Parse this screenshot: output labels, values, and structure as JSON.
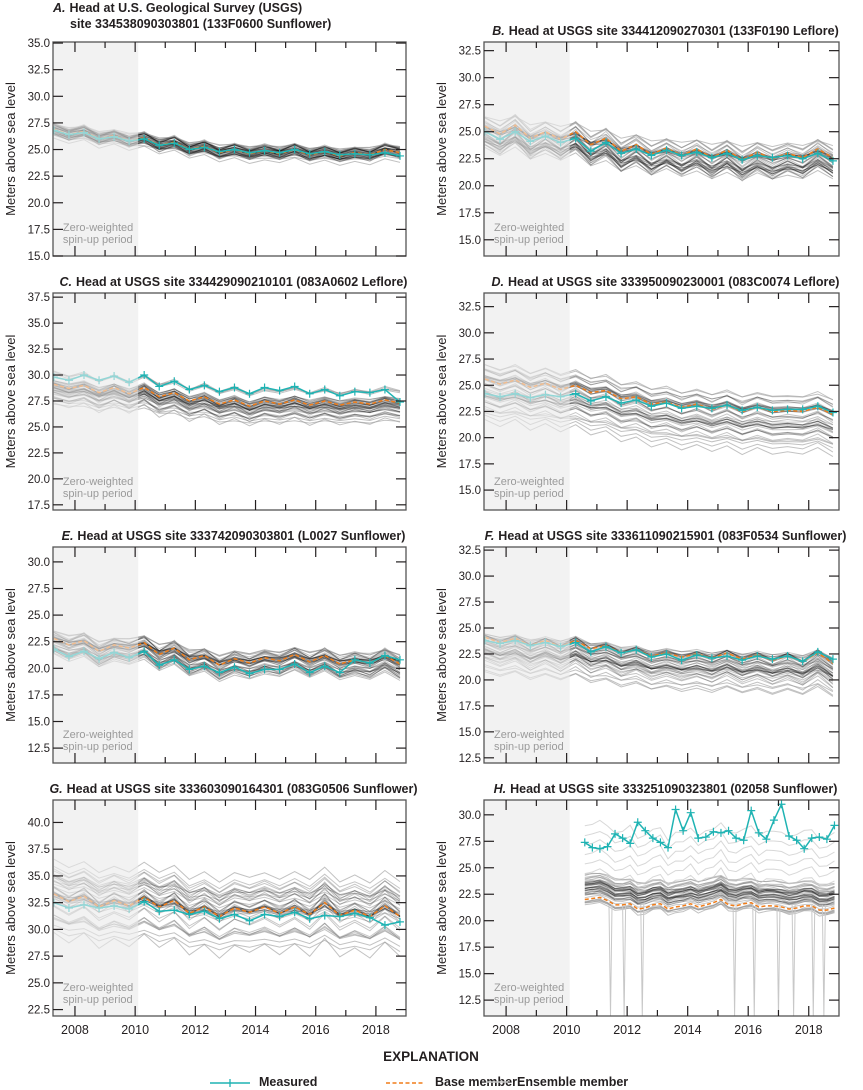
{
  "y_axis_label": "Meters above sea level",
  "spinup_label": [
    "Zero-weighted",
    "spin-up period"
  ],
  "spinup_end_year": 2010.1,
  "x_ticks": [
    "2008",
    "2010",
    "2012",
    "2014",
    "2016",
    "2018"
  ],
  "xlim": [
    2007.27,
    2019.0
  ],
  "colors": {
    "measured": "#1fb3b3",
    "base": "#f07d1a",
    "ensemble": "#000000",
    "ensemble_light": "#c8c8c8",
    "spinup_shade": "#f2f2f2",
    "frame": "#555555"
  },
  "legend": {
    "heading": "EXPLANATION",
    "items": [
      {
        "label": "Measured",
        "style": "teal line with plus markers"
      },
      {
        "label": "Base member",
        "style": "orange dashed line"
      },
      {
        "label": "Ensemble member",
        "style": "light gray line"
      }
    ]
  },
  "chart_data": [
    {
      "type": "line",
      "panel": "A.",
      "title": [
        "Head at U.S. Geological Survey (USGS)",
        "site 334538090303801 (133F0600 Sunflower)"
      ],
      "ylim": [
        15.0,
        35.1
      ],
      "ylabel": "Meters above sea level",
      "x": [
        2007.3,
        2007.8,
        2008.3,
        2008.8,
        2009.3,
        2009.8,
        2010.3,
        2010.8,
        2011.3,
        2011.8,
        2012.3,
        2012.8,
        2013.3,
        2013.8,
        2014.3,
        2014.8,
        2015.3,
        2015.8,
        2016.3,
        2016.8,
        2017.3,
        2017.8,
        2018.3,
        2018.8
      ],
      "base": [
        26.9,
        26.4,
        26.7,
        26.0,
        26.3,
        25.8,
        26.1,
        25.4,
        25.7,
        25.0,
        25.3,
        24.7,
        25.0,
        24.6,
        24.9,
        24.6,
        25.0,
        24.5,
        24.8,
        24.4,
        24.7,
        24.5,
        25.0,
        24.7
      ],
      "measured": [
        26.8,
        26.4,
        26.6,
        26.0,
        26.2,
        25.8,
        26.0,
        25.4,
        25.6,
        25.0,
        25.2,
        24.8,
        25.0,
        24.7,
        24.9,
        24.7,
        25.0,
        24.6,
        24.8,
        24.5,
        24.6,
        24.5,
        24.7,
        24.4
      ],
      "ensemble_spread": [
        -0.6,
        0.6
      ]
    },
    {
      "type": "line",
      "panel": "B.",
      "title": [
        "Head at USGS site 334412090270301 (133F0190 Leflore)"
      ],
      "ylim": [
        13.5,
        33.3
      ],
      "ylabel": "Meters above sea level",
      "x": [
        2007.3,
        2007.8,
        2008.3,
        2008.8,
        2009.3,
        2009.8,
        2010.3,
        2010.8,
        2011.3,
        2011.8,
        2012.3,
        2012.8,
        2013.3,
        2013.8,
        2014.3,
        2014.8,
        2015.3,
        2015.8,
        2016.3,
        2016.8,
        2017.3,
        2017.8,
        2018.3,
        2018.8
      ],
      "base": [
        25.5,
        24.8,
        25.6,
        24.4,
        25.0,
        24.3,
        25.0,
        23.8,
        24.4,
        23.2,
        23.8,
        22.9,
        23.5,
        22.8,
        23.4,
        22.6,
        23.3,
        22.4,
        23.1,
        22.5,
        23.0,
        22.6,
        23.4,
        22.6
      ],
      "measured": [
        25.0,
        24.3,
        25.0,
        24.1,
        24.6,
        24.0,
        24.4,
        23.2,
        24.0,
        23.0,
        23.4,
        22.8,
        23.3,
        22.8,
        23.1,
        22.6,
        23.0,
        22.4,
        22.8,
        22.6,
        22.8,
        22.5,
        23.0,
        22.3
      ],
      "ensemble_spread": [
        -2.0,
        1.0
      ]
    },
    {
      "type": "line",
      "panel": "C.",
      "title": [
        "Head at USGS site 334429090210101 (083A0602 Leflore)"
      ],
      "ylim": [
        17.0,
        37.9
      ],
      "ylabel": "Meters above sea level",
      "x": [
        2007.3,
        2007.8,
        2008.3,
        2008.8,
        2009.3,
        2009.8,
        2010.3,
        2010.8,
        2011.3,
        2011.8,
        2012.3,
        2012.8,
        2013.3,
        2013.8,
        2014.3,
        2014.8,
        2015.3,
        2015.8,
        2016.3,
        2016.8,
        2017.3,
        2017.8,
        2018.3,
        2018.8
      ],
      "base": [
        29.1,
        28.7,
        29.0,
        28.3,
        28.8,
        28.2,
        28.8,
        27.9,
        28.3,
        27.5,
        27.9,
        27.2,
        27.6,
        27.0,
        27.5,
        27.2,
        27.6,
        27.1,
        27.5,
        27.1,
        27.4,
        27.2,
        27.6,
        27.3
      ],
      "measured": [
        29.8,
        29.5,
        30.0,
        29.5,
        29.9,
        29.3,
        30.0,
        28.9,
        29.4,
        28.6,
        29.0,
        28.4,
        28.8,
        28.2,
        28.8,
        28.5,
        28.9,
        28.2,
        28.6,
        28.0,
        28.4,
        28.3,
        28.6,
        27.4
      ],
      "ensemble_spread": [
        -1.8,
        1.0
      ]
    },
    {
      "type": "line",
      "panel": "D.",
      "title": [
        "Head at USGS site 333950090230001 (083C0074 Leflore)"
      ],
      "ylim": [
        13.1,
        33.8
      ],
      "ylabel": "Meters above sea level",
      "x": [
        2007.3,
        2007.8,
        2008.3,
        2008.8,
        2009.3,
        2009.8,
        2010.3,
        2010.8,
        2011.3,
        2011.8,
        2012.3,
        2012.8,
        2013.3,
        2013.8,
        2014.3,
        2014.8,
        2015.3,
        2015.8,
        2016.3,
        2016.8,
        2017.3,
        2017.8,
        2018.3,
        2018.8
      ],
      "base": [
        25.6,
        25.1,
        25.5,
        24.8,
        25.2,
        24.6,
        25.0,
        24.3,
        24.5,
        23.7,
        23.9,
        23.2,
        23.4,
        22.9,
        23.2,
        22.7,
        23.1,
        22.5,
        22.9,
        22.5,
        22.6,
        22.5,
        22.9,
        22.2
      ],
      "measured": [
        24.2,
        23.9,
        24.2,
        23.8,
        24.1,
        23.9,
        24.2,
        23.5,
        23.9,
        23.3,
        23.6,
        23.0,
        23.3,
        22.8,
        23.0,
        22.8,
        23.1,
        22.6,
        22.9,
        22.6,
        22.7,
        22.7,
        23.0,
        22.4
      ],
      "ensemble_spread": [
        -3.3,
        1.6
      ]
    },
    {
      "type": "line",
      "panel": "E.",
      "title": [
        "Head at USGS site 333742090303801 (L0027 Sunflower)"
      ],
      "ylim": [
        11.1,
        31.4
      ],
      "ylabel": "Meters above sea level",
      "x": [
        2007.3,
        2007.8,
        2008.3,
        2008.8,
        2009.3,
        2009.8,
        2010.3,
        2010.8,
        2011.3,
        2011.8,
        2012.3,
        2012.8,
        2013.3,
        2013.8,
        2014.3,
        2014.8,
        2015.3,
        2015.8,
        2016.3,
        2016.8,
        2017.3,
        2017.8,
        2018.3,
        2018.8
      ],
      "base": [
        22.8,
        22.2,
        22.6,
        21.6,
        22.2,
        21.9,
        22.4,
        21.3,
        21.9,
        20.8,
        21.2,
        20.3,
        20.9,
        20.5,
        21.0,
        20.7,
        21.3,
        20.6,
        21.2,
        20.4,
        20.8,
        20.5,
        21.2,
        20.4
      ],
      "measured": [
        21.8,
        21.1,
        21.6,
        20.9,
        21.5,
        21.0,
        21.6,
        20.3,
        20.8,
        19.9,
        20.2,
        19.6,
        20.1,
        19.5,
        19.9,
        19.9,
        20.4,
        19.6,
        20.2,
        19.6,
        20.8,
        20.5,
        21.2,
        20.8
      ],
      "ensemble_spread": [
        -1.5,
        0.8
      ]
    },
    {
      "type": "line",
      "panel": "F.",
      "title": [
        "Head at USGS site 333611090215901 (083F0534 Sunflower)"
      ],
      "ylim": [
        12.0,
        32.8
      ],
      "ylabel": "Meters above sea level",
      "x": [
        2007.3,
        2007.8,
        2008.3,
        2008.8,
        2009.3,
        2009.8,
        2010.3,
        2010.8,
        2011.3,
        2011.8,
        2012.3,
        2012.8,
        2013.3,
        2013.8,
        2014.3,
        2014.8,
        2015.3,
        2015.8,
        2016.3,
        2016.8,
        2017.3,
        2017.8,
        2018.3,
        2018.8
      ],
      "base": [
        24.1,
        23.6,
        24.0,
        23.3,
        23.8,
        23.2,
        23.8,
        23.0,
        23.3,
        22.6,
        22.9,
        22.3,
        22.6,
        22.2,
        22.5,
        22.1,
        22.6,
        22.0,
        22.4,
        21.9,
        22.3,
        21.8,
        22.6,
        21.6
      ],
      "measured": [
        23.8,
        23.5,
        23.8,
        23.3,
        23.6,
        23.2,
        23.6,
        22.7,
        23.2,
        22.6,
        22.9,
        22.2,
        22.5,
        21.9,
        22.4,
        22.1,
        22.3,
        21.9,
        22.3,
        22.0,
        22.3,
        21.8,
        22.7,
        22.0
      ],
      "ensemble_spread": [
        -3.0,
        1.3
      ]
    },
    {
      "type": "line",
      "panel": "G.",
      "title": [
        "Head at USGS site 333603090164301 (083G0506 Sunflower)"
      ],
      "ylim": [
        21.9,
        42.1
      ],
      "ylabel": "Meters above sea level",
      "x": [
        2007.3,
        2007.8,
        2008.3,
        2008.8,
        2009.3,
        2009.8,
        2010.3,
        2010.8,
        2011.3,
        2011.8,
        2012.3,
        2012.8,
        2013.3,
        2013.8,
        2014.3,
        2014.8,
        2015.3,
        2015.8,
        2016.3,
        2016.8,
        2017.3,
        2017.8,
        2018.3,
        2018.8
      ],
      "base": [
        33.3,
        32.6,
        33.1,
        32.1,
        32.7,
        32.2,
        33.0,
        32.1,
        32.7,
        31.5,
        32.1,
        31.2,
        32.0,
        31.6,
        32.1,
        31.5,
        32.1,
        31.4,
        32.5,
        31.3,
        31.8,
        31.2,
        32.2,
        31.2
      ],
      "measured": [
        32.5,
        32.0,
        32.3,
        32.0,
        32.2,
        31.9,
        32.6,
        31.7,
        31.8,
        31.4,
        31.7,
        31.0,
        31.4,
        30.8,
        31.4,
        31.2,
        31.6,
        31.0,
        31.3,
        31.2,
        31.5,
        31.1,
        30.4,
        30.7
      ],
      "ensemble_spread": [
        -2.8,
        3.6
      ]
    },
    {
      "type": "line",
      "panel": "H.",
      "title": [
        "Head at USGS site 333251090323801 (02058 Sunflower)"
      ],
      "ylim": [
        11.0,
        31.4
      ],
      "ylabel": "Meters above sea level",
      "x": [
        2010.6,
        2010.85,
        2011.1,
        2011.35,
        2011.6,
        2011.85,
        2012.1,
        2012.35,
        2012.6,
        2012.85,
        2013.1,
        2013.35,
        2013.6,
        2013.85,
        2014.1,
        2014.35,
        2014.6,
        2014.85,
        2015.1,
        2015.35,
        2015.6,
        2015.85,
        2016.1,
        2016.35,
        2016.6,
        2016.85,
        2017.1,
        2017.35,
        2017.6,
        2017.85,
        2018.1,
        2018.35,
        2018.6,
        2018.85
      ],
      "base": [
        22.0,
        22.1,
        22.2,
        21.9,
        21.5,
        21.5,
        21.6,
        21.1,
        21.2,
        21.5,
        21.6,
        21.1,
        21.3,
        21.4,
        21.6,
        21.3,
        21.5,
        21.7,
        22.0,
        21.5,
        21.4,
        21.6,
        21.7,
        21.3,
        21.4,
        21.4,
        21.3,
        21.1,
        21.2,
        21.4,
        21.4,
        21.0,
        21.0,
        21.2
      ],
      "measured": [
        27.4,
        26.9,
        26.8,
        27.0,
        28.2,
        27.8,
        27.3,
        29.3,
        28.5,
        27.8,
        27.4,
        26.9,
        30.5,
        28.5,
        30.2,
        27.8,
        27.9,
        28.4,
        28.3,
        28.5,
        27.8,
        27.6,
        30.4,
        28.3,
        27.7,
        29.5,
        31.0,
        28.0,
        27.6,
        26.8,
        27.8,
        27.9,
        27.7,
        29.0
      ],
      "ensemble_spread": [
        -0.3,
        2.2
      ]
    }
  ]
}
